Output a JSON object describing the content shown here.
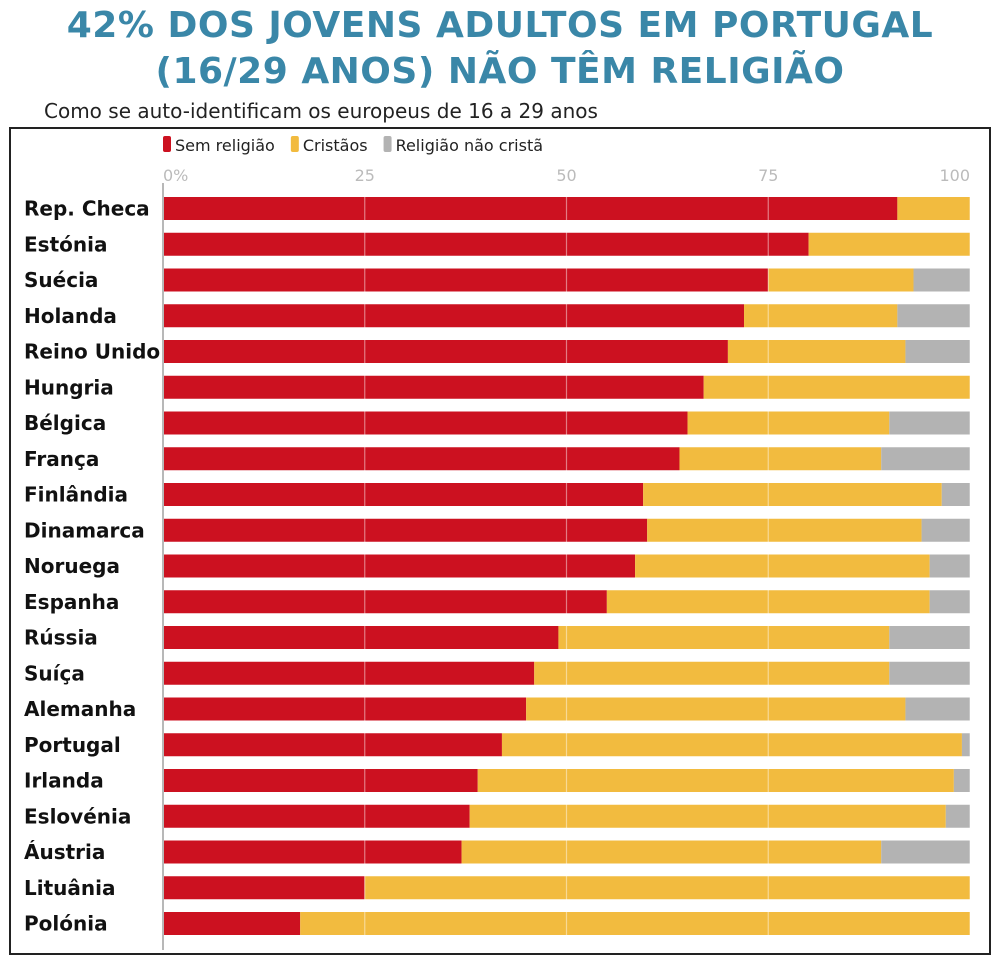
{
  "header": {
    "title_line1": "42% DOS JOVENS ADULTOS EM PORTUGAL",
    "title_line2": "(16/29 ANOS) NÃO TÊM RELIGIÃO",
    "subtitle": "Como se auto-identificam os europeus de 16 a 29 anos"
  },
  "chart_data": {
    "type": "bar",
    "orientation": "horizontal",
    "stacked": true,
    "title": "42% DOS JOVENS ADULTOS EM PORTUGAL (16/29 ANOS) NÃO TÊM RELIGIÃO",
    "subtitle": "Como se auto-identificam os europeus de 16 a 29 anos",
    "xlim": [
      0,
      100
    ],
    "x_ticks": [
      "0%",
      "25",
      "50",
      "75",
      "100"
    ],
    "x_tick_values": [
      0,
      25,
      50,
      75,
      100
    ],
    "grid": true,
    "legend_position": "top-left",
    "categories": [
      "Rep. Checa",
      "Estónia",
      "Suécia",
      "Holanda",
      "Reino Unido",
      "Hungria",
      "Bélgica",
      "França",
      "Finlândia",
      "Dinamarca",
      "Noruega",
      "Espanha",
      "Rússia",
      "Suíça",
      "Alemanha",
      "Portugal",
      "Irlanda",
      "Eslovénia",
      "Áustria",
      "Lituânia",
      "Polónia"
    ],
    "series": [
      {
        "name": "Sem religião",
        "color": "#cc1120",
        "values": [
          91,
          80,
          75,
          72,
          70,
          67,
          65,
          64,
          59.5,
          60,
          58.5,
          55,
          49,
          46,
          45,
          42,
          39,
          38,
          37,
          25,
          17
        ]
      },
      {
        "name": "Cristãos",
        "color": "#f2bb3f",
        "values": [
          9,
          20,
          18,
          19,
          22,
          33,
          25,
          25,
          37,
          34,
          36.5,
          40,
          41,
          44,
          47,
          57,
          59,
          59,
          52,
          75,
          83
        ]
      },
      {
        "name": "Religião não cristã",
        "color": "#b3b3b3",
        "values": [
          0,
          0,
          7,
          9,
          8,
          0,
          10,
          11,
          3.5,
          6,
          5,
          5,
          10,
          10,
          8,
          1,
          2,
          3,
          11,
          0,
          0
        ]
      }
    ]
  }
}
